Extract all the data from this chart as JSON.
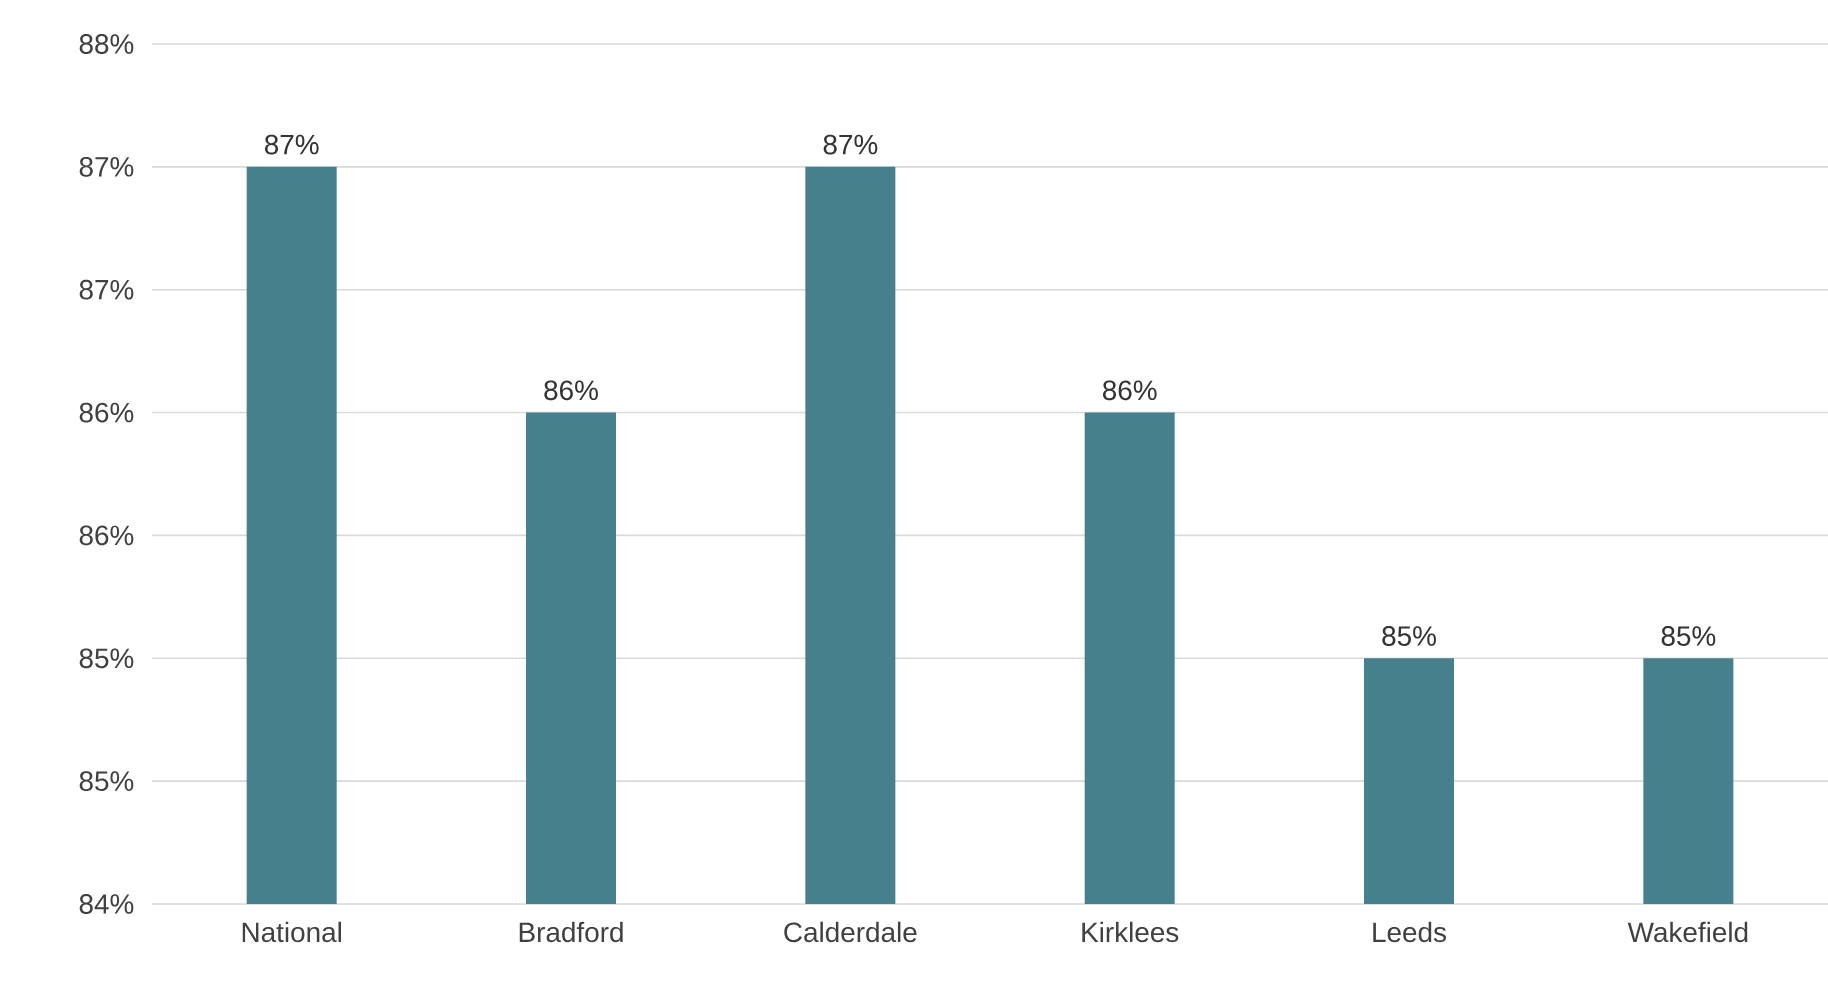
{
  "chart_data": {
    "type": "bar",
    "categories": [
      "National",
      "Bradford",
      "Calderdale",
      "Kirklees",
      "Leeds",
      "Wakefield"
    ],
    "values": [
      87.2,
      86.2,
      87.2,
      86.2,
      85.2,
      85.2
    ],
    "value_labels": [
      "87%",
      "86%",
      "87%",
      "86%",
      "85%",
      "85%"
    ],
    "color": "#45808c",
    "ylim": [
      84.2,
      87.7
    ],
    "yticks": [
      {
        "value": 84.2,
        "label": "84%"
      },
      {
        "value": 84.7,
        "label": "85%"
      },
      {
        "value": 85.2,
        "label": "85%"
      },
      {
        "value": 85.7,
        "label": "86%"
      },
      {
        "value": 86.2,
        "label": "86%"
      },
      {
        "value": 86.7,
        "label": "87%"
      },
      {
        "value": 87.2,
        "label": "87%"
      },
      {
        "value": 87.7,
        "label": "88%"
      }
    ],
    "grid": "y"
  }
}
